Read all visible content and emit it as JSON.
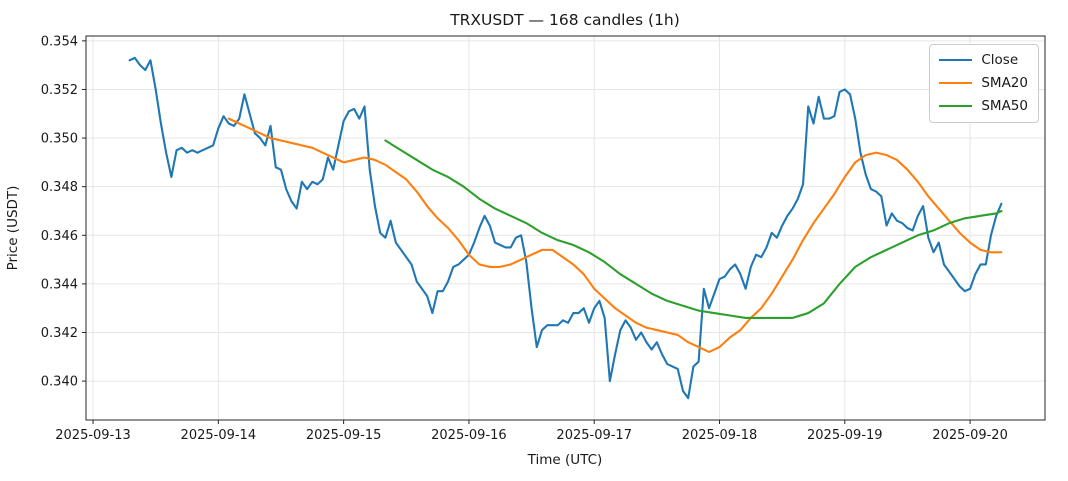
{
  "chart_data": {
    "type": "line",
    "title": "TRXUSDT — 168 candles (1h)",
    "xlabel": "Time (UTC)",
    "ylabel": "Price (USDT)",
    "grid": true,
    "legend_position": "upper right",
    "x_unit": "hours since 2025-09-13 00:00 UTC",
    "xlim": [
      -1.35,
      182.35
    ],
    "ylim": [
      0.3384,
      0.3542
    ],
    "x_ticks": [
      {
        "t": 0,
        "label": "2025-09-13"
      },
      {
        "t": 24,
        "label": "2025-09-14"
      },
      {
        "t": 48,
        "label": "2025-09-15"
      },
      {
        "t": 72,
        "label": "2025-09-16"
      },
      {
        "t": 96,
        "label": "2025-09-17"
      },
      {
        "t": 120,
        "label": "2025-09-18"
      },
      {
        "t": 144,
        "label": "2025-09-19"
      },
      {
        "t": 168,
        "label": "2025-09-20"
      }
    ],
    "y_ticks": [
      {
        "v": 0.34,
        "label": "0.340"
      },
      {
        "v": 0.342,
        "label": "0.342"
      },
      {
        "v": 0.344,
        "label": "0.344"
      },
      {
        "v": 0.346,
        "label": "0.346"
      },
      {
        "v": 0.348,
        "label": "0.348"
      },
      {
        "v": 0.35,
        "label": "0.350"
      },
      {
        "v": 0.352,
        "label": "0.352"
      },
      {
        "v": 0.354,
        "label": "0.354"
      }
    ],
    "series": [
      {
        "name": "Close",
        "color": "#1f77b4",
        "x_start": 7,
        "x_step": 1,
        "values": [
          0.3532,
          0.3533,
          0.353,
          0.3528,
          0.3532,
          0.352,
          0.3506,
          0.3494,
          0.3484,
          0.3495,
          0.3496,
          0.3494,
          0.3495,
          0.3494,
          0.3495,
          0.3496,
          0.3497,
          0.3504,
          0.3509,
          0.3506,
          0.3505,
          0.3508,
          0.3518,
          0.351,
          0.3502,
          0.35,
          0.3497,
          0.3505,
          0.3488,
          0.3487,
          0.3479,
          0.3474,
          0.3471,
          0.3482,
          0.3479,
          0.3482,
          0.3481,
          0.3483,
          0.3492,
          0.3487,
          0.3497,
          0.3507,
          0.3511,
          0.3512,
          0.3508,
          0.3513,
          0.3487,
          0.3472,
          0.3461,
          0.3459,
          0.3466,
          0.3457,
          0.3454,
          0.3451,
          0.3448,
          0.3441,
          0.3438,
          0.3435,
          0.3428,
          0.3437,
          0.3437,
          0.3441,
          0.3447,
          0.3448,
          0.345,
          0.3452,
          0.3457,
          0.3463,
          0.3468,
          0.3464,
          0.3457,
          0.3456,
          0.3455,
          0.3455,
          0.3459,
          0.346,
          0.3449,
          0.343,
          0.3414,
          0.3421,
          0.3423,
          0.3423,
          0.3423,
          0.3425,
          0.3424,
          0.3428,
          0.3428,
          0.343,
          0.3424,
          0.343,
          0.3433,
          0.3426,
          0.34,
          0.3411,
          0.3421,
          0.3425,
          0.3422,
          0.3417,
          0.342,
          0.3416,
          0.3413,
          0.3416,
          0.3411,
          0.3407,
          0.3406,
          0.3405,
          0.3396,
          0.3393,
          0.3406,
          0.3408,
          0.3438,
          0.343,
          0.3436,
          0.3442,
          0.3443,
          0.3446,
          0.3448,
          0.3444,
          0.3438,
          0.3447,
          0.3452,
          0.3451,
          0.3455,
          0.3461,
          0.3459,
          0.3464,
          0.3468,
          0.3471,
          0.3475,
          0.3481,
          0.3513,
          0.3506,
          0.3517,
          0.3508,
          0.3508,
          0.3509,
          0.3519,
          0.352,
          0.3518,
          0.3508,
          0.3494,
          0.3485,
          0.3479,
          0.3478,
          0.3476,
          0.3464,
          0.3469,
          0.3466,
          0.3465,
          0.3463,
          0.3462,
          0.3468,
          0.3472,
          0.3459,
          0.3453,
          0.3457,
          0.3448,
          0.3445,
          0.3442,
          0.3439,
          0.3437,
          0.3438,
          0.3444,
          0.3448,
          0.3448,
          0.346,
          0.3468,
          0.3473
        ]
      },
      {
        "name": "SMA20",
        "color": "#ff7f0e",
        "x": [
          26,
          28,
          30,
          32,
          34,
          36,
          38,
          40,
          42,
          44,
          46,
          48,
          50,
          52,
          54,
          56,
          58,
          60,
          62,
          64,
          66,
          68,
          70,
          72,
          74,
          76,
          78,
          80,
          82,
          84,
          86,
          88,
          90,
          92,
          94,
          96,
          98,
          100,
          102,
          104,
          106,
          108,
          110,
          112,
          114,
          116,
          118,
          120,
          122,
          124,
          126,
          128,
          130,
          132,
          134,
          136,
          138,
          140,
          142,
          144,
          146,
          148,
          150,
          152,
          154,
          156,
          158,
          160,
          162,
          164,
          166,
          168,
          170,
          172,
          174
        ],
        "values": [
          0.3508,
          0.3506,
          0.3504,
          0.3502,
          0.35,
          0.3499,
          0.3498,
          0.3497,
          0.3496,
          0.3494,
          0.3492,
          0.349,
          0.3491,
          0.3492,
          0.3491,
          0.3489,
          0.3486,
          0.3483,
          0.3478,
          0.3472,
          0.3467,
          0.3463,
          0.3458,
          0.3452,
          0.3448,
          0.3447,
          0.3447,
          0.3448,
          0.345,
          0.3452,
          0.3454,
          0.3454,
          0.3451,
          0.3448,
          0.3444,
          0.3438,
          0.3434,
          0.343,
          0.3427,
          0.3424,
          0.3422,
          0.3421,
          0.342,
          0.3419,
          0.3416,
          0.3414,
          0.3412,
          0.3414,
          0.3418,
          0.3421,
          0.3426,
          0.343,
          0.3436,
          0.3443,
          0.345,
          0.3458,
          0.3465,
          0.3471,
          0.3477,
          0.3484,
          0.349,
          0.3493,
          0.3494,
          0.3493,
          0.3491,
          0.3487,
          0.3482,
          0.3476,
          0.3471,
          0.3466,
          0.3461,
          0.3457,
          0.3454,
          0.3453,
          0.3453
        ]
      },
      {
        "name": "SMA50",
        "color": "#2ca02c",
        "x": [
          56,
          59,
          62,
          65,
          68,
          71,
          74,
          77,
          80,
          83,
          86,
          89,
          92,
          95,
          98,
          101,
          104,
          107,
          110,
          113,
          116,
          119,
          122,
          125,
          128,
          131,
          134,
          137,
          140,
          143,
          146,
          149,
          152,
          155,
          158,
          161,
          164,
          167,
          170,
          173,
          174
        ],
        "values": [
          0.3499,
          0.3495,
          0.3491,
          0.3487,
          0.3484,
          0.348,
          0.3475,
          0.3471,
          0.3468,
          0.3465,
          0.3461,
          0.3458,
          0.3456,
          0.3453,
          0.3449,
          0.3444,
          0.344,
          0.3436,
          0.3433,
          0.3431,
          0.3429,
          0.3428,
          0.3427,
          0.3426,
          0.3426,
          0.3426,
          0.3426,
          0.3428,
          0.3432,
          0.344,
          0.3447,
          0.3451,
          0.3454,
          0.3457,
          0.346,
          0.3462,
          0.3465,
          0.3467,
          0.3468,
          0.3469,
          0.347
        ]
      }
    ]
  }
}
